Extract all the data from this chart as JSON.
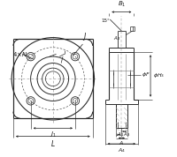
{
  "bg_color": "#ffffff",
  "line_color": "#2a2a2a",
  "dim_color": "#1a1a1a",
  "thin_color": "#777777",
  "center_color": "#888888",
  "fig_width": 2.0,
  "fig_height": 1.78,
  "dpi": 100
}
